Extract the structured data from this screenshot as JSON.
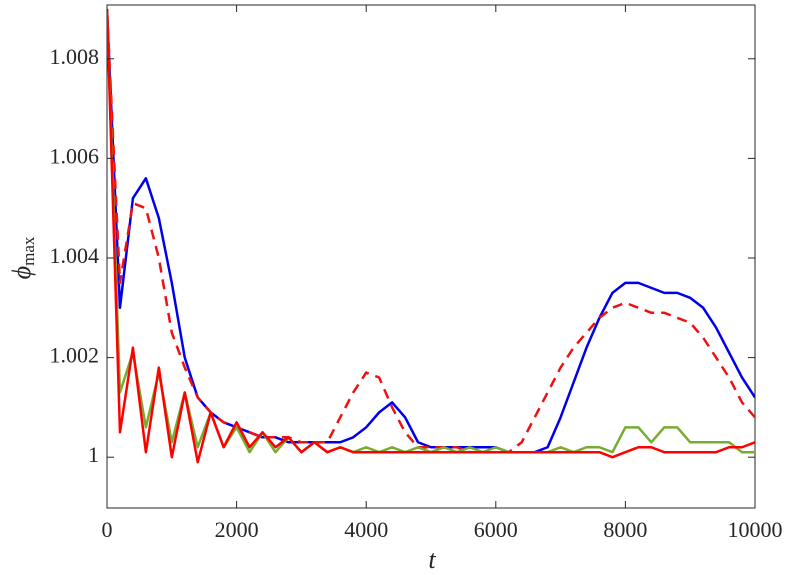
{
  "chart_data": {
    "type": "line",
    "xlabel": "t",
    "ylabel": "ϕ",
    "ylabel_subscript": "max",
    "x": [
      0,
      200,
      400,
      600,
      800,
      1000,
      1200,
      1400,
      1600,
      1800,
      2000,
      2200,
      2400,
      2600,
      2800,
      3000,
      3200,
      3400,
      3600,
      3800,
      4000,
      4200,
      4400,
      4600,
      4800,
      5000,
      5200,
      5400,
      5600,
      5800,
      6000,
      6200,
      6400,
      6600,
      6800,
      7000,
      7200,
      7400,
      7600,
      7800,
      8000,
      8200,
      8400,
      8600,
      8800,
      9000,
      9200,
      9400,
      9600,
      9800,
      10000
    ],
    "series": [
      {
        "color": "#0000ee",
        "dashed": false,
        "values": [
          1.009,
          1.003,
          1.0052,
          1.0056,
          1.0048,
          1.0035,
          1.002,
          1.0012,
          1.0009,
          1.0007,
          1.0006,
          1.0005,
          1.0004,
          1.0004,
          1.0003,
          1.0003,
          1.0003,
          1.0003,
          1.0003,
          1.0004,
          1.0006,
          1.0009,
          1.0011,
          1.0008,
          1.0003,
          1.0002,
          1.0002,
          1.0002,
          1.0002,
          1.0002,
          1.0002,
          1.0001,
          1.0001,
          1.0001,
          1.0002,
          1.0008,
          1.0015,
          1.0022,
          1.0028,
          1.0033,
          1.0035,
          1.0035,
          1.0034,
          1.0033,
          1.0033,
          1.0032,
          1.003,
          1.0026,
          1.0021,
          1.0016,
          1.0012
        ]
      },
      {
        "color": "#ee1111",
        "dashed": true,
        "values": [
          1.009,
          1.0035,
          1.0051,
          1.005,
          1.004,
          1.0025,
          1.0018,
          1.0012,
          1.0009,
          1.0007,
          1.0006,
          1.0005,
          1.0004,
          1.0004,
          1.0004,
          1.0003,
          1.0003,
          1.0003,
          1.0008,
          1.0013,
          1.0017,
          1.0016,
          1.001,
          1.0005,
          1.0002,
          1.0002,
          1.0002,
          1.0002,
          1.0001,
          1.0001,
          1.0001,
          1.0001,
          1.0003,
          1.0008,
          1.0013,
          1.0018,
          1.0022,
          1.0025,
          1.0028,
          1.003,
          1.0031,
          1.003,
          1.0029,
          1.0029,
          1.0028,
          1.0027,
          1.0024,
          1.002,
          1.0016,
          1.0011,
          1.0008
        ]
      },
      {
        "color": "#77ac30",
        "dashed": false,
        "values": [
          1.009,
          1.0013,
          1.0021,
          1.0006,
          1.0017,
          1.0003,
          1.0013,
          1.0002,
          1.0009,
          1.0002,
          1.0006,
          1.0001,
          1.0005,
          1.0001,
          1.0004,
          1.0001,
          1.0003,
          1.0001,
          1.0002,
          1.0001,
          1.0002,
          1.0001,
          1.0002,
          1.0001,
          1.0002,
          1.0001,
          1.0002,
          1.0001,
          1.0002,
          1.0001,
          1.0002,
          1.0001,
          1.0001,
          1.0001,
          1.0001,
          1.0002,
          1.0001,
          1.0002,
          1.0002,
          1.0001,
          1.0006,
          1.0006,
          1.0003,
          1.0006,
          1.0006,
          1.0003,
          1.0003,
          1.0003,
          1.0003,
          1.0001,
          1.0001
        ]
      },
      {
        "color": "#ff0000",
        "dashed": false,
        "values": [
          1.009,
          1.0005,
          1.0022,
          1.0001,
          1.0018,
          1.0,
          1.0013,
          0.9999,
          1.0009,
          1.0002,
          1.0007,
          1.0002,
          1.0005,
          1.0002,
          1.0004,
          1.0001,
          1.0003,
          1.0001,
          1.0002,
          1.0001,
          1.0001,
          1.0001,
          1.0001,
          1.0001,
          1.0001,
          1.0001,
          1.0001,
          1.0001,
          1.0001,
          1.0001,
          1.0001,
          1.0001,
          1.0001,
          1.0001,
          1.0001,
          1.0001,
          1.0001,
          1.0001,
          1.0001,
          1.0,
          1.0001,
          1.0002,
          1.0002,
          1.0001,
          1.0001,
          1.0001,
          1.0001,
          1.0001,
          1.0002,
          1.0002,
          1.0003
        ]
      }
    ],
    "xlim": [
      0,
      10000
    ],
    "xticks": [
      0,
      2000,
      4000,
      6000,
      8000,
      10000
    ],
    "ylim": [
      0.99898,
      1.00908
    ],
    "yticks": [
      1,
      1.002,
      1.004,
      1.006,
      1.008
    ],
    "grid": false
  }
}
